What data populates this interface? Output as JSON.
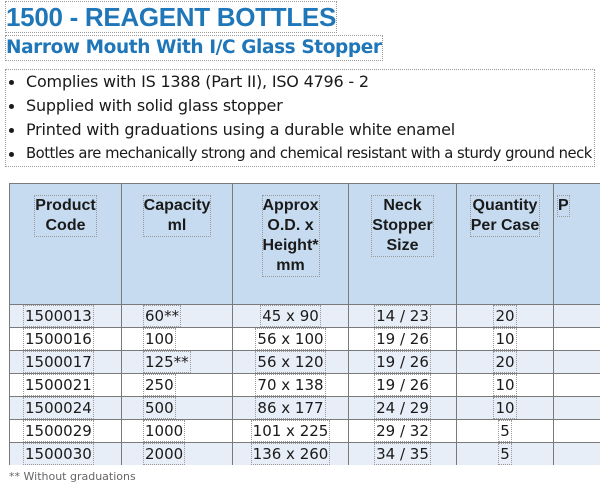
{
  "title": "1500 - REAGENT BOTTLES",
  "subtitle": "Narrow Mouth With I/C Glass Stopper",
  "bullets": [
    "Complies with IS 1388 (Part II), ISO 4796 - 2",
    "Supplied with solid glass stopper",
    "Printed with graduations using a durable white enamel",
    "Bottles are mechanically strong and chemical resistant with a sturdy ground neck"
  ],
  "table": {
    "headers": [
      {
        "line1": "Product",
        "line2": "Code",
        "line3": "",
        "line4": ""
      },
      {
        "line1": "Capacity",
        "line2": "ml",
        "line3": "",
        "line4": ""
      },
      {
        "line1": "Approx",
        "line2": "O.D. x",
        "line3": "Height*",
        "line4": "mm"
      },
      {
        "line1": "Neck",
        "line2": "Stopper",
        "line3": "Size",
        "line4": ""
      },
      {
        "line1": "Quantity",
        "line2": "Per Case",
        "line3": "",
        "line4": ""
      },
      {
        "line1": "P",
        "line2": "",
        "line3": "",
        "line4": ""
      }
    ],
    "rows": [
      {
        "code": "1500013",
        "capacity": "60**",
        "od_height": "45 x 90",
        "neck": "14 / 23",
        "qty": "20"
      },
      {
        "code": "1500016",
        "capacity": "100",
        "od_height": "56 x 100",
        "neck": "19 / 26",
        "qty": "10"
      },
      {
        "code": "1500017",
        "capacity": "125**",
        "od_height": "56 x 120",
        "neck": "19 / 26",
        "qty": "20"
      },
      {
        "code": "1500021",
        "capacity": "250",
        "od_height": "70 x 138",
        "neck": "19 / 26",
        "qty": "10"
      },
      {
        "code": "1500024",
        "capacity": "500",
        "od_height": "86 x 177",
        "neck": "24 / 29",
        "qty": "10"
      },
      {
        "code": "1500029",
        "capacity": "1000",
        "od_height": "101 x 225",
        "neck": "29 / 32",
        "qty": "5"
      },
      {
        "code": "1500030",
        "capacity": "2000",
        "od_height": "136 x 260",
        "neck": "34 / 35",
        "qty": "5"
      }
    ]
  },
  "footnote": "**  Without graduations"
}
